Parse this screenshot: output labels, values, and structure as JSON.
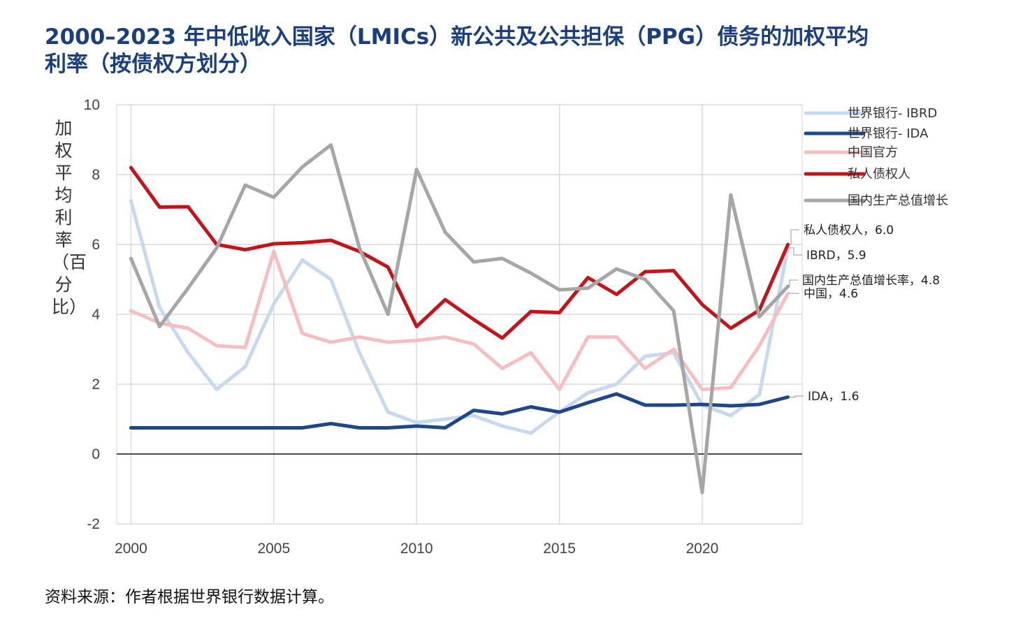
{
  "title": "2000–2023 年中低收入国家（LMICs）新公共及公共担保（PPG）债务的加权平均利率（按债权方划分）",
  "y_axis_label": "加权平均利率（百分比）",
  "source": "资料来源：作者根据世界银行数据计算。",
  "chart_data": {
    "type": "line",
    "title": "2000–2023 年中低收入国家（LMICs）新公共及公共担保（PPG）债务的加权平均利率（按债权方划分）",
    "xlabel": "",
    "ylabel": "加权平均利率（百分比）",
    "x": [
      2000,
      2001,
      2002,
      2003,
      2004,
      2005,
      2006,
      2007,
      2008,
      2009,
      2010,
      2011,
      2012,
      2013,
      2014,
      2015,
      2016,
      2017,
      2018,
      2019,
      2020,
      2021,
      2022,
      2023
    ],
    "xlim": [
      1999.5,
      2023.5
    ],
    "ylim": [
      -2,
      10
    ],
    "yticks": [
      -2,
      0,
      2,
      4,
      6,
      8,
      10
    ],
    "xticks": [
      2000,
      2005,
      2010,
      2015,
      2020
    ],
    "grid": true,
    "legend_position": "top-right",
    "series": [
      {
        "key": "ibrd",
        "name": "世界银行- IBRD",
        "color": "#c7d9f0",
        "values": [
          7.25,
          4.2,
          2.9,
          1.85,
          2.5,
          4.3,
          5.55,
          5.0,
          2.9,
          1.2,
          0.9,
          1.0,
          1.1,
          0.8,
          0.6,
          1.2,
          1.75,
          2.0,
          2.8,
          2.9,
          1.4,
          1.1,
          1.7,
          5.9
        ],
        "end_label": "IBRD，5.9"
      },
      {
        "key": "ida",
        "name": "世界银行- IDA",
        "color": "#1f4788",
        "values": [
          0.75,
          0.75,
          0.75,
          0.75,
          0.75,
          0.75,
          0.75,
          0.87,
          0.75,
          0.75,
          0.8,
          0.75,
          1.25,
          1.15,
          1.35,
          1.2,
          1.47,
          1.72,
          1.4,
          1.4,
          1.42,
          1.38,
          1.42,
          1.63
        ],
        "end_label": "IDA，1.6"
      },
      {
        "key": "china",
        "name": "中国官方",
        "color": "#f5bfc2",
        "values": [
          4.1,
          3.75,
          3.6,
          3.1,
          3.05,
          5.8,
          3.45,
          3.2,
          3.35,
          3.2,
          3.25,
          3.35,
          3.15,
          2.45,
          2.9,
          1.85,
          3.35,
          3.35,
          2.45,
          3.0,
          1.85,
          1.9,
          3.1,
          4.6
        ],
        "end_label": "中国，4.6"
      },
      {
        "key": "private",
        "name": "私人债权人",
        "color": "#c0151b",
        "values": [
          8.2,
          7.07,
          7.08,
          6.0,
          5.85,
          6.02,
          6.05,
          6.12,
          5.8,
          5.35,
          3.65,
          4.42,
          3.85,
          3.32,
          4.08,
          4.05,
          5.05,
          4.57,
          5.22,
          5.25,
          4.28,
          3.6,
          4.12,
          6.0
        ],
        "end_label": "私人债权人，6.0"
      },
      {
        "key": "gdp",
        "name": "国内生产总值增长",
        "color": "#a6a6a6",
        "values": [
          5.6,
          3.65,
          4.75,
          5.9,
          7.7,
          7.35,
          8.22,
          8.85,
          5.9,
          4.0,
          8.15,
          6.35,
          5.5,
          5.6,
          5.18,
          4.7,
          4.75,
          5.3,
          5.0,
          4.1,
          -1.1,
          7.42,
          3.93,
          4.8
        ],
        "end_label": "国内生产总值增长率，4.8"
      }
    ]
  }
}
